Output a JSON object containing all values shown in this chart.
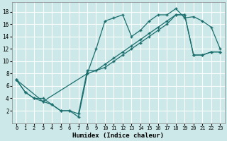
{
  "xlabel": "Humidex (Indice chaleur)",
  "bg_color": "#cce8e8",
  "grid_color": "#ffffff",
  "line_color": "#1a6e6e",
  "xlim": [
    -0.5,
    23.5
  ],
  "ylim": [
    0,
    19.5
  ],
  "xticks": [
    0,
    1,
    2,
    3,
    4,
    5,
    6,
    7,
    8,
    9,
    10,
    11,
    12,
    13,
    14,
    15,
    16,
    17,
    18,
    19,
    20,
    21,
    22,
    23
  ],
  "yticks": [
    2,
    4,
    6,
    8,
    10,
    12,
    14,
    16,
    18
  ],
  "line1_x": [
    0,
    1,
    2,
    3,
    4,
    5,
    6,
    7,
    8,
    9,
    10,
    11,
    12,
    13,
    14,
    15,
    16,
    17,
    18,
    19,
    20,
    21,
    22,
    23
  ],
  "line1_y": [
    7,
    5,
    4,
    4,
    3,
    2,
    2,
    1,
    8,
    12,
    16.5,
    17,
    17.5,
    14,
    15,
    16.5,
    17.5,
    17.5,
    18.5,
    17,
    17.2,
    16.5,
    15.5,
    12
  ],
  "line2_x": [
    0,
    3,
    8,
    10,
    11,
    12,
    13,
    14,
    15,
    16,
    17,
    18,
    19,
    20,
    21,
    22,
    23
  ],
  "line2_y": [
    7,
    3.5,
    8,
    9,
    10,
    11,
    12,
    13,
    14,
    15,
    16,
    17.5,
    17.5,
    11,
    11,
    11.5,
    11.5
  ],
  "line3_x": [
    0,
    1,
    2,
    3,
    4,
    5,
    6,
    7,
    8,
    9,
    10,
    11,
    12,
    13,
    14,
    15,
    16,
    17,
    18,
    19,
    20,
    21,
    22,
    23
  ],
  "line3_y": [
    7,
    5,
    4,
    3.5,
    3,
    2.0,
    2.0,
    1.5,
    8.5,
    8.5,
    9.5,
    10.5,
    11.5,
    12.5,
    13.5,
    14.5,
    15.5,
    16.5,
    17.5,
    17.5,
    11,
    11,
    11.5,
    11.5
  ]
}
